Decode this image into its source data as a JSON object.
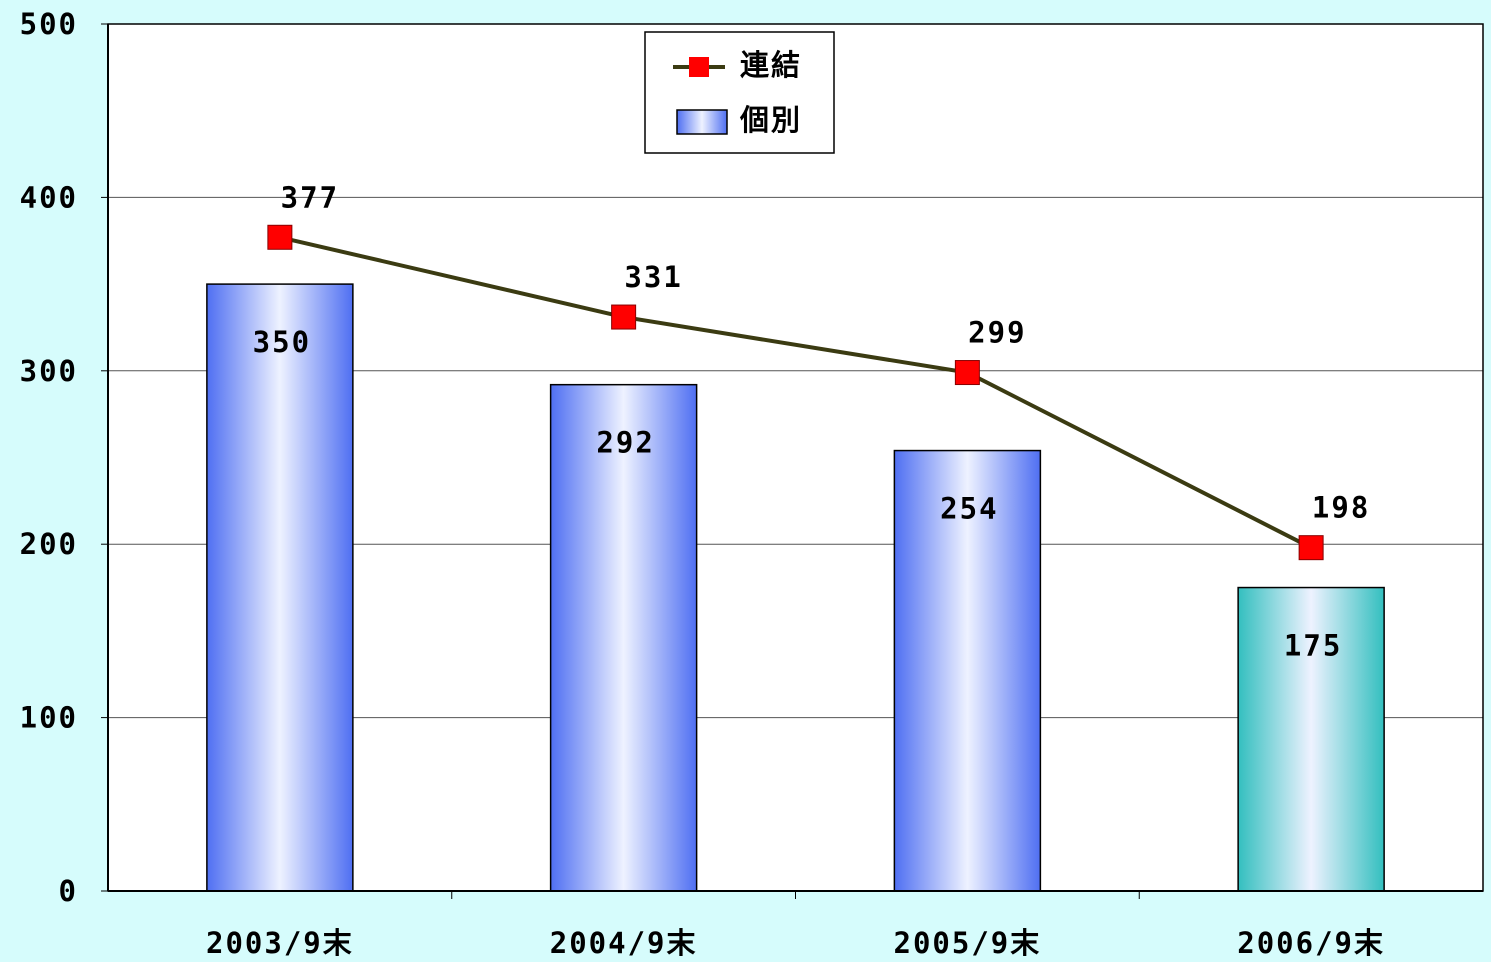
{
  "chart_data": {
    "type": "bar",
    "categories": [
      "2003/9末",
      "2004/9末",
      "2005/9末",
      "2006/9末"
    ],
    "series": [
      {
        "name": "連結",
        "type": "line",
        "color": "#3b3b12",
        "marker_color": "#ff0000",
        "values": [
          377,
          331,
          299,
          198
        ]
      },
      {
        "name": "個別",
        "type": "bar",
        "color": "#4f6ff2",
        "colors": [
          "#4f6ff2",
          "#4f6ff2",
          "#4f6ff2",
          "#33bfbf"
        ],
        "values": [
          350,
          292,
          254,
          175
        ]
      }
    ],
    "ylim": [
      0,
      500
    ],
    "yticks": [
      0,
      100,
      200,
      300,
      400,
      500
    ],
    "grid": true,
    "legend": "top"
  }
}
